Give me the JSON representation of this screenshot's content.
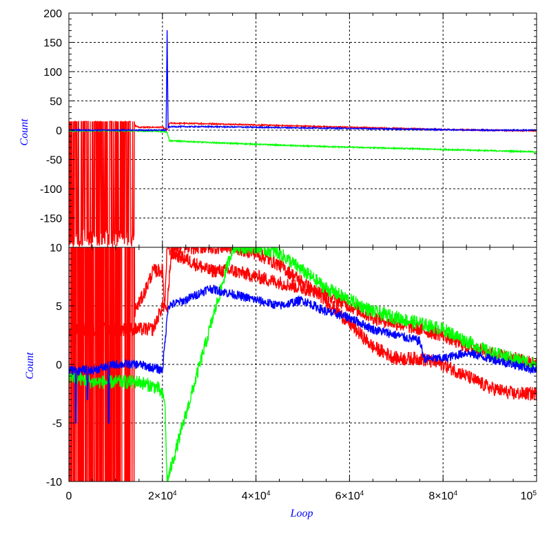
{
  "chart_data": [
    {
      "type": "line",
      "panel": "upper",
      "ylabel": "Count",
      "ylim": [
        -200,
        200
      ],
      "xlim": [
        0,
        100000
      ],
      "yticks": [
        150,
        100,
        50,
        0,
        -50,
        -100,
        -150
      ],
      "ytick_labels": [
        "200",
        "150",
        "100",
        "50",
        "0",
        "-50",
        "-100",
        "-150"
      ],
      "ytick_values": [
        200,
        150,
        100,
        50,
        0,
        -50,
        -100,
        -150
      ],
      "grid": true,
      "series": [
        {
          "color": "#ff0000",
          "x": [
            0,
            1000,
            2000,
            4000,
            6000,
            8000,
            10000,
            12000,
            15000,
            20000,
            21000,
            21500,
            30000,
            40000,
            50000,
            60000,
            70000,
            80000,
            90000,
            100000
          ],
          "y": [
            -150,
            15,
            -150,
            15,
            -160,
            15,
            -130,
            15,
            5,
            5,
            0,
            12,
            11,
            9,
            7,
            5,
            3,
            1,
            0,
            -1
          ],
          "noisy_range": [
            0,
            14000
          ]
        },
        {
          "color": "#00ff00",
          "x": [
            0,
            5000,
            10000,
            15000,
            20000,
            21000,
            21500,
            30000,
            40000,
            50000,
            60000,
            70000,
            80000,
            90000,
            100000
          ],
          "y": [
            -1,
            -1,
            -1,
            -1,
            -2,
            -3,
            -18,
            -21,
            -24,
            -27,
            -29,
            -31,
            -33,
            -35,
            -37
          ]
        },
        {
          "color": "#0000ff",
          "x": [
            0,
            10000,
            20000,
            20800,
            21000,
            21200,
            22000,
            30000,
            40000,
            50000,
            60000,
            70000,
            80000,
            90000,
            100000
          ],
          "y": [
            0,
            0,
            0,
            0,
            170,
            5,
            6,
            6,
            5,
            4,
            3,
            2,
            1,
            0,
            0
          ]
        }
      ]
    },
    {
      "type": "line",
      "panel": "lower",
      "xlabel": "Loop",
      "ylabel": "Count",
      "ylim": [
        -10,
        10
      ],
      "xlim": [
        0,
        100000
      ],
      "ytick_labels": [
        "10",
        "5",
        "0",
        "-5",
        "-10"
      ],
      "ytick_values": [
        10,
        5,
        0,
        -5,
        -10
      ],
      "xtick_values": [
        0,
        20000,
        40000,
        60000,
        80000,
        100000
      ],
      "xtick_labels": [
        {
          "base": "0",
          "exp": ""
        },
        {
          "base": "2×10",
          "exp": "4"
        },
        {
          "base": "4×10",
          "exp": "4"
        },
        {
          "base": "6×10",
          "exp": "4"
        },
        {
          "base": "8×10",
          "exp": "4"
        },
        {
          "base": "10",
          "exp": "5"
        }
      ],
      "grid": true,
      "series": [
        {
          "color": "#ff0000",
          "band_width": 1.2,
          "x": [
            0,
            2000,
            4000,
            8000,
            12000,
            16000,
            18000,
            20000,
            20500,
            21000,
            22000,
            25000,
            30000,
            35000,
            40000,
            45000,
            50000,
            55000,
            60000,
            65000,
            70000,
            75000,
            80000,
            85000,
            90000,
            95000,
            100000
          ],
          "y": [
            3,
            6,
            3,
            6,
            3,
            6,
            8,
            8,
            5,
            5,
            10,
            10,
            10,
            10,
            9.5,
            8.5,
            7,
            5.5,
            3.5,
            1.5,
            0.5,
            0.5,
            0,
            -1,
            -2,
            -2.5,
            -2.5
          ],
          "y_upper": [
            3,
            3,
            3,
            3,
            3,
            3,
            3,
            5,
            5,
            10,
            9.5,
            9,
            8,
            8,
            7.5,
            7,
            6.5,
            6,
            5,
            4,
            3.5,
            3,
            2.5,
            1.5,
            1,
            0.5,
            0
          ],
          "noisy_range": [
            0,
            14000
          ]
        },
        {
          "color": "#00ff00",
          "band_width": 1.2,
          "x": [
            0,
            5000,
            10000,
            15000,
            19000,
            20500,
            21000,
            35000,
            40000,
            45000,
            50000,
            55000,
            60000,
            65000,
            70000,
            75000,
            80000,
            85000,
            90000,
            95000,
            100000
          ],
          "y": [
            -1,
            -1.5,
            -1.5,
            -1.5,
            -2,
            -3,
            -10,
            10,
            10,
            9.5,
            8,
            6.5,
            5.5,
            4.5,
            4,
            3.5,
            3,
            2,
            1,
            0.5,
            0
          ]
        },
        {
          "color": "#0000ff",
          "band_width": 0.8,
          "x": [
            0,
            5000,
            10000,
            15000,
            20000,
            20800,
            21200,
            25000,
            30000,
            35000,
            40000,
            45000,
            50000,
            55000,
            60000,
            65000,
            70000,
            75000,
            76000,
            80000,
            85000,
            90000,
            95000,
            100000
          ],
          "y": [
            -0.5,
            -0.5,
            0,
            0,
            -0.5,
            3,
            5,
            5.5,
            6.5,
            6,
            5.5,
            5,
            5.5,
            4.5,
            4,
            3,
            2.5,
            2,
            0.5,
            0.5,
            1,
            0.5,
            0,
            -0.5
          ],
          "spikes": [
            [
              1500,
              -5
            ],
            [
              4000,
              -3
            ],
            [
              8500,
              -5
            ]
          ]
        }
      ]
    }
  ]
}
